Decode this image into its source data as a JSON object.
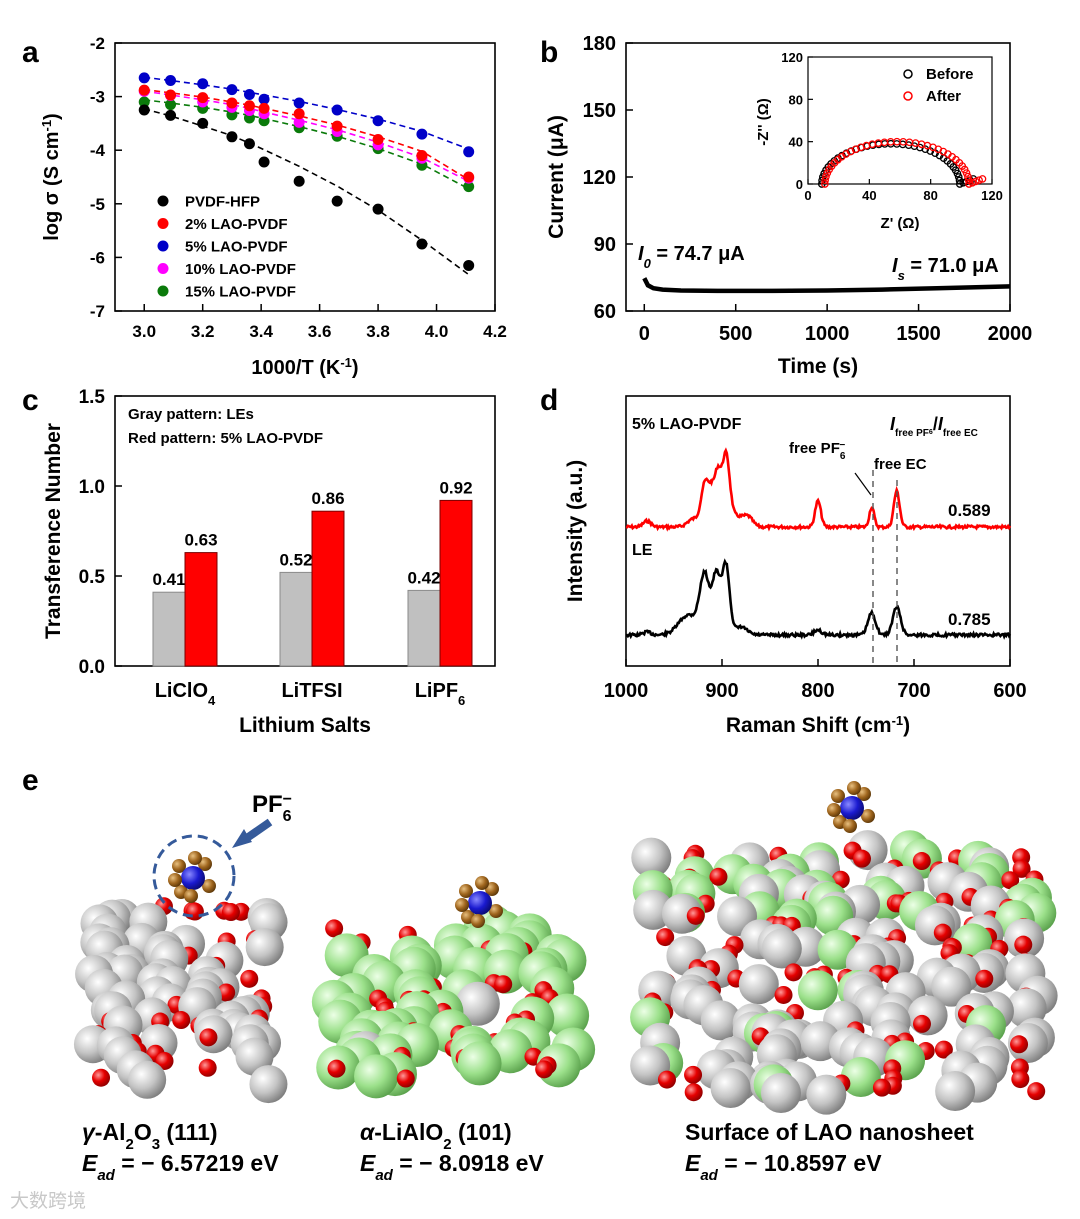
{
  "panel_labels": {
    "a": "a",
    "b": "b",
    "c": "c",
    "d": "d",
    "e": "e"
  },
  "chart_data": [
    {
      "id": "a",
      "type": "scatter",
      "xlabel": "1000/T (K",
      "xlabel_sup": "-1",
      "xlabel_end": ")",
      "ylabel": "log σ (S cm",
      "ylabel_sup": "-1",
      "ylabel_end": ")",
      "xlim": [
        2.9,
        4.2
      ],
      "ylim": [
        -7,
        -2
      ],
      "xticks": [
        "3.0",
        "3.2",
        "3.4",
        "3.6",
        "3.8",
        "4.0",
        "4.2"
      ],
      "yticks": [
        "-2",
        "-3",
        "-4",
        "-5",
        "-6",
        "-7"
      ],
      "x": [
        3.0,
        3.09,
        3.2,
        3.3,
        3.36,
        3.41,
        3.53,
        3.66,
        3.8,
        3.95,
        4.11
      ],
      "series": [
        {
          "name": "PVDF-HFP",
          "color": "#000000",
          "values": [
            -3.25,
            -3.35,
            -3.5,
            -3.75,
            -3.88,
            -4.22,
            -4.58,
            -4.95,
            -5.1,
            -5.75,
            -6.15
          ],
          "fit": [
            -3.23,
            -3.36,
            -3.55,
            -3.73,
            -3.87,
            -3.99,
            -4.3,
            -4.67,
            -5.12,
            -5.68,
            -6.32
          ]
        },
        {
          "name": "2% LAO-PVDF",
          "color": "#ff0000",
          "values": [
            -2.88,
            -2.97,
            -3.02,
            -3.12,
            -3.17,
            -3.22,
            -3.32,
            -3.55,
            -3.8,
            -4.1,
            -4.5
          ],
          "fit": [
            -2.87,
            -2.93,
            -3.01,
            -3.1,
            -3.16,
            -3.22,
            -3.36,
            -3.53,
            -3.75,
            -4.02,
            -4.55
          ]
        },
        {
          "name": "5% LAO-PVDF",
          "color": "#0000c8",
          "values": [
            -2.65,
            -2.7,
            -2.76,
            -2.87,
            -2.96,
            -3.05,
            -3.12,
            -3.25,
            -3.45,
            -3.7,
            -4.03
          ],
          "fit": [
            -2.64,
            -2.7,
            -2.78,
            -2.86,
            -2.92,
            -2.97,
            -3.09,
            -3.24,
            -3.42,
            -3.65,
            -3.98
          ]
        },
        {
          "name": "10% LAO-PVDF",
          "color": "#ff00ff",
          "values": [
            -2.9,
            -2.98,
            -3.1,
            -3.2,
            -3.26,
            -3.32,
            -3.48,
            -3.65,
            -3.9,
            -4.15,
            -4.52
          ],
          "fit": [
            -2.9,
            -2.97,
            -3.06,
            -3.15,
            -3.22,
            -3.29,
            -3.44,
            -3.62,
            -3.85,
            -4.14,
            -4.58
          ]
        },
        {
          "name": "15% LAO-PVDF",
          "color": "#0a7a0a",
          "values": [
            -3.1,
            -3.15,
            -3.22,
            -3.34,
            -3.4,
            -3.45,
            -3.58,
            -3.74,
            -3.97,
            -4.28,
            -4.68
          ],
          "fit": [
            -3.06,
            -3.12,
            -3.2,
            -3.29,
            -3.35,
            -3.41,
            -3.56,
            -3.74,
            -3.97,
            -4.26,
            -4.72
          ]
        }
      ]
    },
    {
      "id": "b",
      "type": "line",
      "xlabel": "Time (s)",
      "ylabel": "Current (μA)",
      "xlim": [
        -100,
        2000
      ],
      "ylim": [
        60,
        180
      ],
      "xticks": [
        "0",
        "500",
        "1000",
        "1500",
        "2000"
      ],
      "yticks": [
        "60",
        "90",
        "120",
        "150",
        "180"
      ],
      "x": [
        0,
        20,
        50,
        100,
        200,
        400,
        700,
        1000,
        1300,
        1600,
        2000
      ],
      "values": [
        74.7,
        71.5,
        70.2,
        69.6,
        69.2,
        69.0,
        69.0,
        69.2,
        69.6,
        70.2,
        71.0
      ],
      "annotations": {
        "i0_symbol": "I",
        "i0_sub": "0",
        "i0_text": " = 74.7 μA",
        "is_symbol": "I",
        "is_sub": "s",
        "is_text": " = 71.0 μA"
      },
      "inset": {
        "type": "scatter",
        "xlabel": "Z' (Ω)",
        "ylabel": "-Z'' (Ω)",
        "xlim": [
          0,
          120
        ],
        "ylim": [
          0,
          120
        ],
        "xticks": [
          "0",
          "40",
          "80",
          "120"
        ],
        "yticks": [
          "0",
          "40",
          "80",
          "120"
        ],
        "series": [
          {
            "name": "Before",
            "color": "#000000",
            "center": 54,
            "radius": 45,
            "peak": 38
          },
          {
            "name": "After",
            "color": "#ff0000",
            "center": 58,
            "radius": 47,
            "peak": 40
          }
        ]
      }
    },
    {
      "id": "c",
      "type": "bar",
      "xlabel": "Lithium Salts",
      "ylabel": "Transference Number",
      "ylim": [
        0,
        1.5
      ],
      "yticks": [
        "0.0",
        "0.5",
        "1.0",
        "1.5"
      ],
      "categories": [
        {
          "main": "LiClO",
          "sub": "4"
        },
        {
          "main": "LiTFSI",
          "sub": ""
        },
        {
          "main": "LiPF",
          "sub": "6"
        }
      ],
      "notes": [
        "Gray pattern: LEs",
        "Red pattern: 5% LAO-PVDF"
      ],
      "series": [
        {
          "name": "LEs",
          "color": "#c0c0c0",
          "values": [
            0.41,
            0.52,
            0.42
          ],
          "labels": [
            "0.41",
            "0.52",
            "0.42"
          ]
        },
        {
          "name": "5% LAO-PVDF",
          "color": "#ff0000",
          "values": [
            0.63,
            0.86,
            0.92
          ],
          "labels": [
            "0.63",
            "0.86",
            "0.92"
          ]
        }
      ]
    },
    {
      "id": "d",
      "type": "line",
      "xlabel": "Raman Shift (cm",
      "xlabel_sup": "-1",
      "xlabel_end": ")",
      "ylabel": "Intensity (a.u.)",
      "xlim": [
        1000,
        600
      ],
      "xticks": [
        "1000",
        "900",
        "800",
        "700",
        "600"
      ],
      "ratio_label": {
        "a": "I",
        "a_sub": "free PF",
        "a_subsub": "6",
        "slash": "/",
        "b": "I",
        "b_sub": "free EC"
      },
      "peak_labels": {
        "pf6": "free PF",
        "pf6_sub": "6",
        "pf6_sup": "−",
        "ec": "free EC"
      },
      "series": [
        {
          "name": "5% LAO-PVDF",
          "color": "#ff0000",
          "ratio": "0.589"
        },
        {
          "name": "LE",
          "color": "#000000",
          "ratio": "0.785"
        }
      ]
    }
  ],
  "panel_e": {
    "ion_label": "PF",
    "ion_sub": "6",
    "ion_sup": "−",
    "structures": [
      {
        "name_pre": "γ",
        "name_main": "-Al",
        "name_s1": "2",
        "name_m2": "O",
        "name_s2": "3",
        "name_end": " (111)",
        "e_symbol": "E",
        "e_sub": "ad",
        "e_value": " = − 6.57219 eV"
      },
      {
        "name_pre": "α",
        "name_main": "-LiAlO",
        "name_s1": "2",
        "name_m2": "",
        "name_s2": "",
        "name_end": " (101)",
        "e_symbol": "E",
        "e_sub": "ad",
        "e_value": " = − 8.0918 eV"
      },
      {
        "name_pre": "",
        "name_main": "Surface of LAO nanosheet",
        "name_s1": "",
        "name_m2": "",
        "name_s2": "",
        "name_end": "",
        "e_symbol": "E",
        "e_sub": "ad",
        "e_value": " = − 10.8597 eV"
      }
    ]
  },
  "watermark": "大数跨境"
}
